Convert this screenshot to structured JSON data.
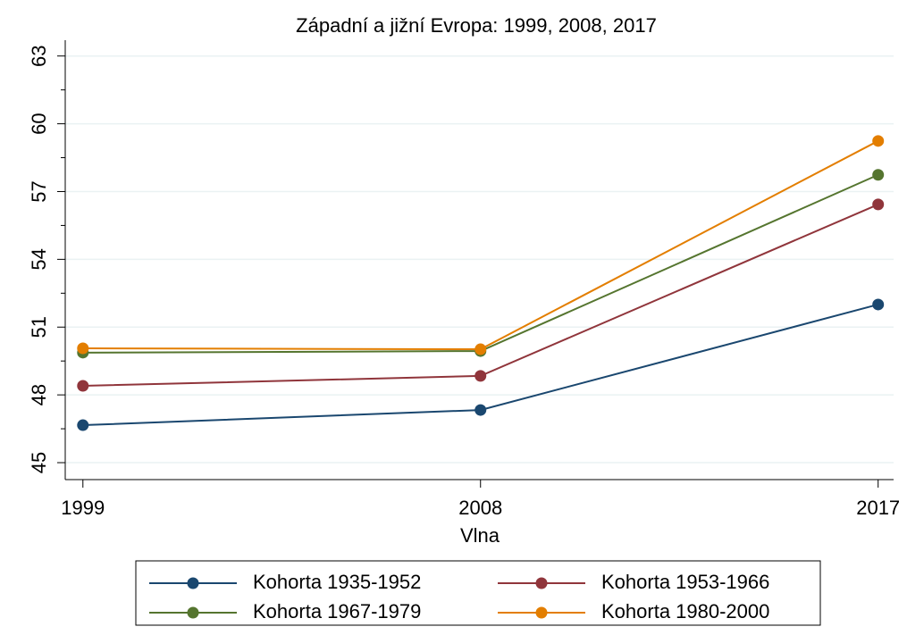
{
  "chart_data": {
    "type": "line",
    "title": "Západní a jižní Evropa: 1999, 2008, 2017",
    "x_label": "Vlna",
    "x": [
      1999,
      2008,
      2017
    ],
    "series": [
      {
        "name": "Kohorta 1935-1952",
        "color": "#1a476f",
        "values": [
          46.66,
          47.33,
          52.0
        ]
      },
      {
        "name": "Kohorta 1953-1966",
        "color": "#90353b",
        "values": [
          48.4,
          48.84,
          56.43
        ]
      },
      {
        "name": "Kohorta 1967-1979",
        "color": "#55752f",
        "values": [
          49.87,
          49.94,
          57.74
        ]
      },
      {
        "name": "Kohorta 1980-2000",
        "color": "#e37e00",
        "values": [
          50.06,
          50.02,
          59.24
        ]
      }
    ],
    "xlim": [
      1998.6,
      2017.35
    ],
    "xticks": [
      1999,
      2008,
      2017
    ],
    "ylim": [
      44.25,
      63.7
    ],
    "yticks": [
      45,
      48,
      51,
      54,
      57,
      60,
      63
    ],
    "yminorticks": [
      46.5,
      49.5,
      52.5,
      55.5,
      58.5,
      61.5
    ],
    "grid": true,
    "legend": "bottom"
  }
}
